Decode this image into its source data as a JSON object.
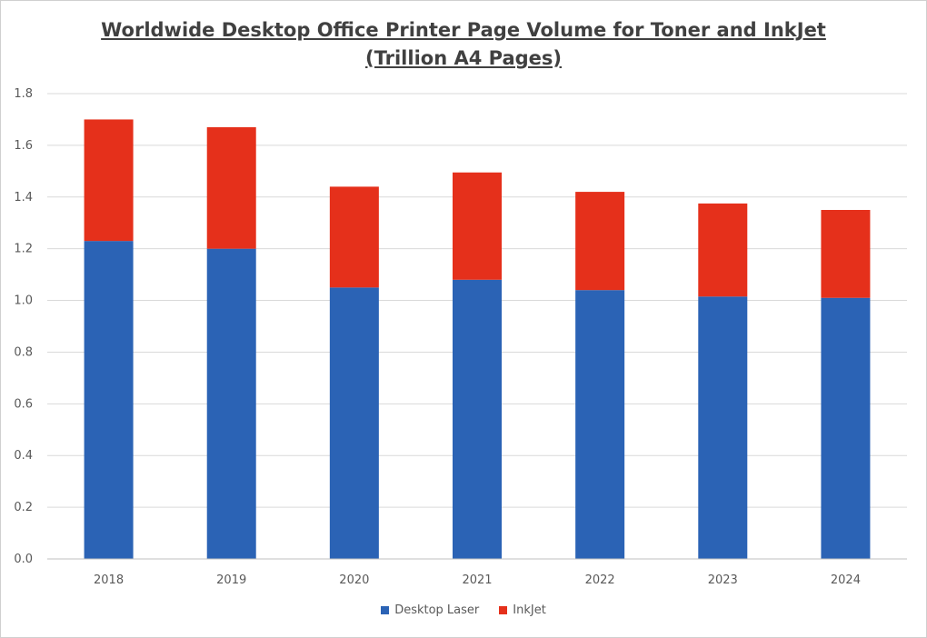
{
  "chart_data": {
    "type": "bar",
    "stacked": true,
    "title_line1": "Worldwide Desktop Office Printer Page Volume for Toner and InkJet",
    "title_line2": "(Trillion A4 Pages)",
    "xlabel": "",
    "ylabel": "",
    "ylim": [
      0,
      1.8
    ],
    "yticks": [
      "0.0",
      "0.2",
      "0.4",
      "0.6",
      "0.8",
      "1.0",
      "1.2",
      "1.4",
      "1.6",
      "1.8"
    ],
    "categories": [
      "2018",
      "2019",
      "2020",
      "2021",
      "2022",
      "2023",
      "2024"
    ],
    "series": [
      {
        "name": "Desktop Laser",
        "color": "#2b63b5",
        "values": [
          1.23,
          1.2,
          1.05,
          1.08,
          1.04,
          1.015,
          1.01
        ]
      },
      {
        "name": "InkJet",
        "color": "#e5301b",
        "values": [
          0.47,
          0.47,
          0.39,
          0.415,
          0.38,
          0.36,
          0.34
        ]
      }
    ],
    "grid": true,
    "legend_position": "bottom"
  }
}
